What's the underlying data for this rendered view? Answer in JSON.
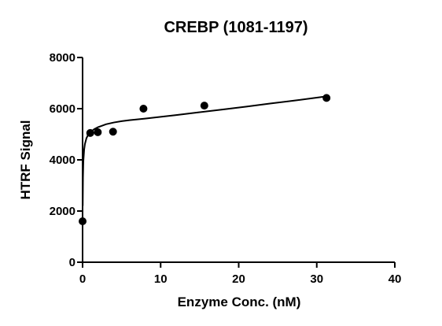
{
  "chart_data": {
    "type": "scatter",
    "title": "CREBP (1081-1197)",
    "xlabel": "Enzyme Conc. (nM)",
    "ylabel": "HTRF Signal",
    "xlim": [
      0,
      40
    ],
    "ylim": [
      0,
      8000
    ],
    "xticks": [
      0,
      10,
      20,
      30,
      40
    ],
    "yticks": [
      0,
      2000,
      4000,
      6000,
      8000
    ],
    "grid": false,
    "legend": "none",
    "series": [
      {
        "x": [
          0,
          0.98,
          1.95,
          3.9,
          7.8,
          15.6,
          31.25
        ],
        "y": [
          1600,
          5050,
          5080,
          5100,
          6000,
          6120,
          6420
        ]
      }
    ],
    "fit_curve": {
      "x": [
        0.02,
        0.05,
        0.1,
        0.2,
        0.3,
        0.5,
        0.75,
        1,
        1.5,
        2,
        3,
        4,
        5,
        6,
        7,
        8,
        10,
        12,
        15,
        18,
        21,
        24,
        27,
        30,
        31.25
      ],
      "y": [
        2200,
        3300,
        3950,
        4400,
        4620,
        4850,
        5000,
        5080,
        5200,
        5280,
        5390,
        5460,
        5510,
        5550,
        5580,
        5610,
        5680,
        5750,
        5860,
        5970,
        6080,
        6200,
        6310,
        6430,
        6480
      ]
    }
  }
}
